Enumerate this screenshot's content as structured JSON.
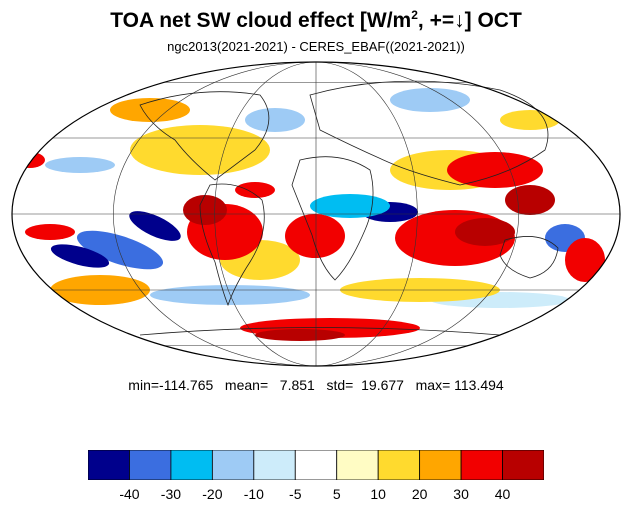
{
  "header": {
    "title_main": "TOA net SW cloud effect [W/m",
    "title_sup": "2",
    "title_rest": ", +=↓]  OCT",
    "subtitle": "ngc2013(2021-2021) - CERES_EBAF((2021-2021))"
  },
  "stats": {
    "text": "min=-114.765   mean=   7.851   std=  19.677   max= 113.494",
    "min": -114.765,
    "mean": 7.851,
    "std": 19.677,
    "max": 113.494
  },
  "colorbar": {
    "colors": [
      "#00008c",
      "#3b6ee0",
      "#00bdf2",
      "#9ecbf5",
      "#cdecfa",
      "#ffffff",
      "#fffcc4",
      "#ffda2e",
      "#ffa600",
      "#f20000",
      "#b80000"
    ],
    "labels": [
      "-40",
      "-30",
      "-20",
      "-10",
      "-5",
      "5",
      "10",
      "20",
      "30",
      "40"
    ]
  }
}
